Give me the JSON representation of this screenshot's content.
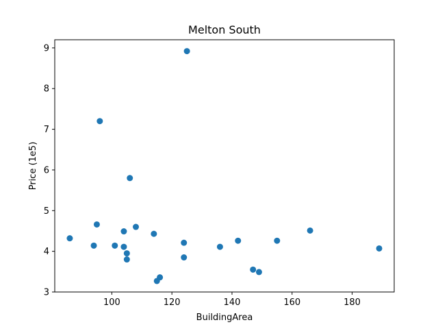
{
  "chart_data": {
    "type": "scatter",
    "title": "Melton South",
    "xlabel": "BuildingArea",
    "ylabel": "Price (1e5)",
    "xlim": [
      81,
      194
    ],
    "ylim": [
      3.0,
      9.2
    ],
    "xticks": [
      100,
      120,
      140,
      160,
      180
    ],
    "yticks": [
      3,
      4,
      5,
      6,
      7,
      8,
      9
    ],
    "grid": false,
    "color": "#1f77b4",
    "points": [
      {
        "x": 125,
        "y": 8.92
      },
      {
        "x": 96,
        "y": 7.2
      },
      {
        "x": 106,
        "y": 5.8
      },
      {
        "x": 95,
        "y": 4.66
      },
      {
        "x": 108,
        "y": 4.6
      },
      {
        "x": 104,
        "y": 4.49
      },
      {
        "x": 114,
        "y": 4.43
      },
      {
        "x": 86,
        "y": 4.32
      },
      {
        "x": 142,
        "y": 4.26
      },
      {
        "x": 155,
        "y": 4.26
      },
      {
        "x": 166,
        "y": 4.51
      },
      {
        "x": 124,
        "y": 4.21
      },
      {
        "x": 94,
        "y": 4.14
      },
      {
        "x": 101,
        "y": 4.14
      },
      {
        "x": 104,
        "y": 4.11
      },
      {
        "x": 136,
        "y": 4.11
      },
      {
        "x": 189,
        "y": 4.07
      },
      {
        "x": 105,
        "y": 3.95
      },
      {
        "x": 124,
        "y": 3.85
      },
      {
        "x": 105,
        "y": 3.8
      },
      {
        "x": 147,
        "y": 3.55
      },
      {
        "x": 149,
        "y": 3.49
      },
      {
        "x": 116,
        "y": 3.36
      },
      {
        "x": 115,
        "y": 3.27
      }
    ]
  }
}
